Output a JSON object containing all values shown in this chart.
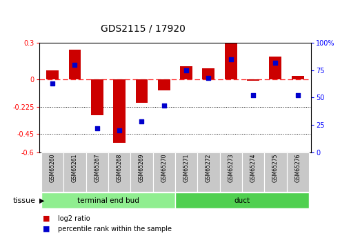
{
  "title": "GDS2115 / 17920",
  "categories": [
    "GSM65260",
    "GSM65261",
    "GSM65267",
    "GSM65268",
    "GSM65269",
    "GSM65270",
    "GSM65271",
    "GSM65272",
    "GSM65273",
    "GSM65274",
    "GSM65275",
    "GSM65276"
  ],
  "log2_ratio": [
    0.075,
    0.245,
    -0.295,
    -0.52,
    -0.19,
    -0.09,
    0.11,
    0.09,
    0.295,
    -0.01,
    0.185,
    0.03
  ],
  "percentile_rank": [
    63,
    80,
    22,
    20,
    28,
    43,
    75,
    68,
    85,
    52,
    82,
    52
  ],
  "groups": [
    {
      "label": "terminal end bud",
      "start": 0,
      "end": 6,
      "color": "#90EE90"
    },
    {
      "label": "duct",
      "start": 6,
      "end": 12,
      "color": "#50D050"
    }
  ],
  "ylim_left": [
    -0.6,
    0.3
  ],
  "ylim_right": [
    0,
    100
  ],
  "yticks_left": [
    -0.6,
    -0.45,
    -0.225,
    0.0,
    0.3
  ],
  "ytick_labels_left": [
    "-0.6",
    "-0.45",
    "-0.225",
    "0",
    "0.3"
  ],
  "yticks_right": [
    0,
    25,
    50,
    75,
    100
  ],
  "ytick_labels_right": [
    "0",
    "25",
    "50",
    "75",
    "100%"
  ],
  "hline_y": 0.0,
  "dotted_lines": [
    -0.225,
    -0.45
  ],
  "bar_color": "#CC0000",
  "dot_color": "#0000CC",
  "bar_width": 0.55,
  "dot_size": 25,
  "tissue_label": "tissue",
  "legend_log2": "log2 ratio",
  "legend_pct": "percentile rank within the sample"
}
